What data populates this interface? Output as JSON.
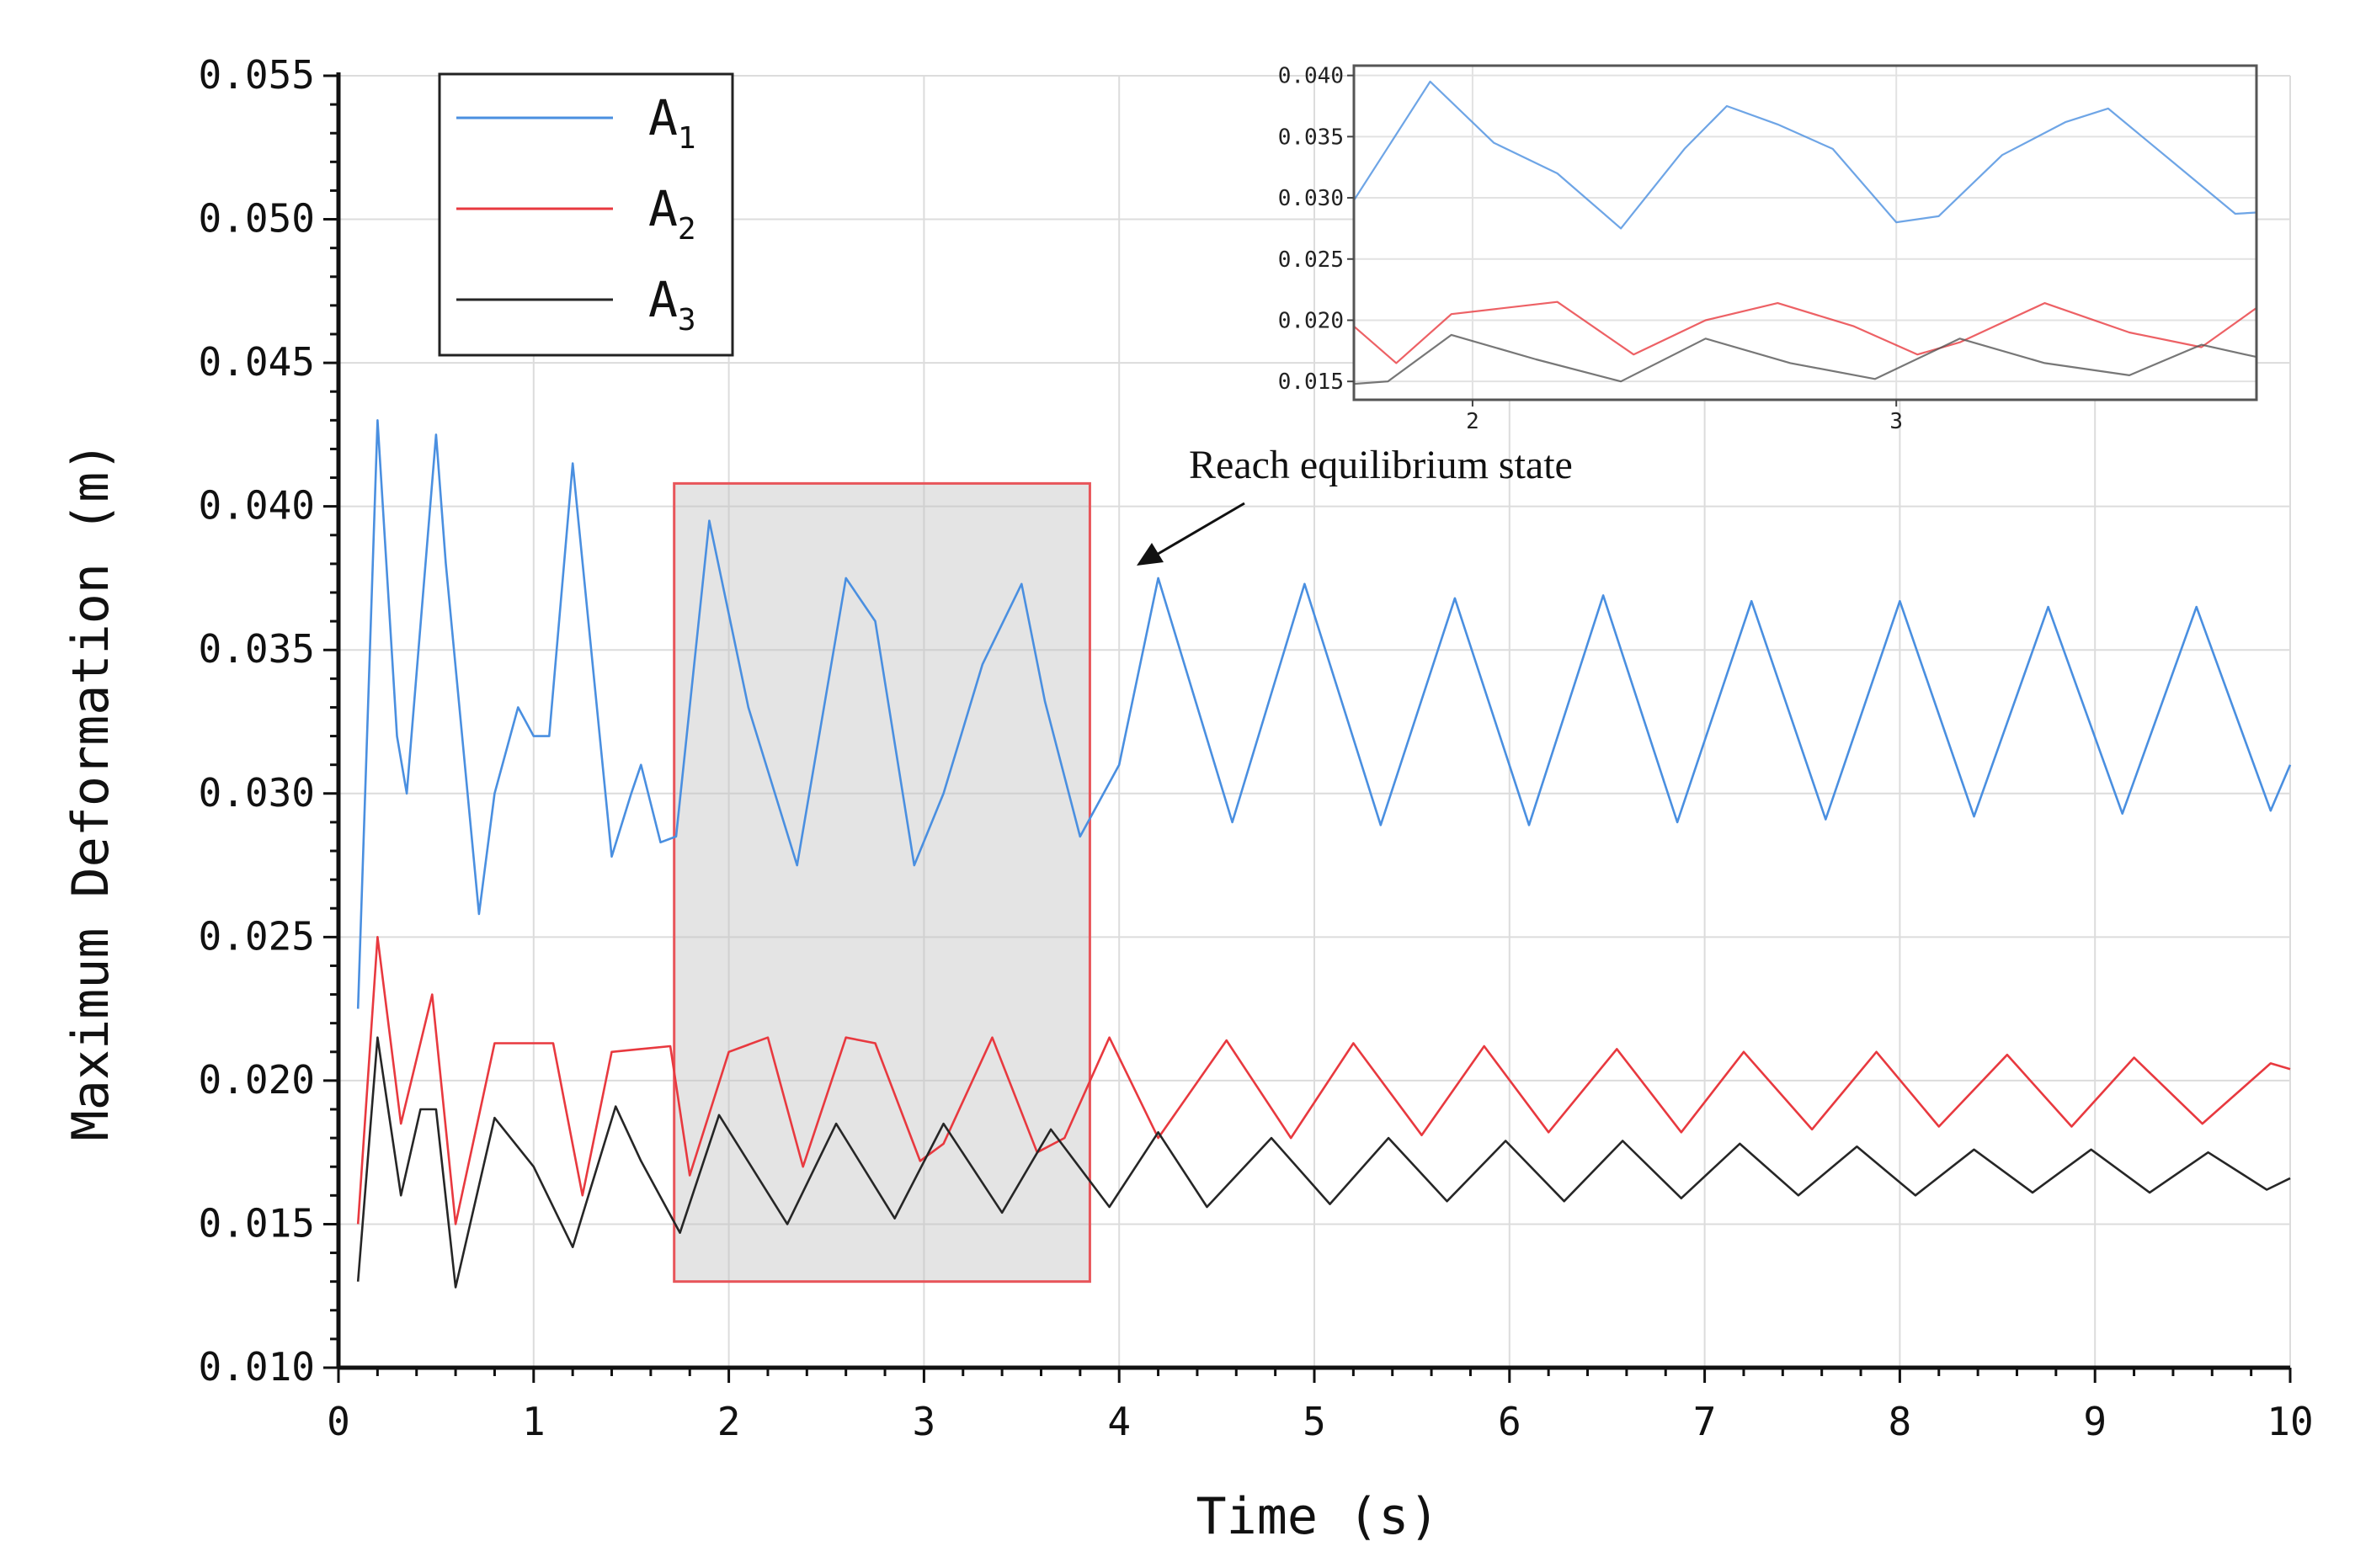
{
  "chart_data": [
    {
      "type": "line",
      "xlabel": "Time (s)",
      "ylabel": "Maximum Deformation (m)",
      "xlim": [
        0,
        10
      ],
      "ylim": [
        0.01,
        0.055
      ],
      "xticks": [
        "0",
        "1",
        "2",
        "3",
        "4",
        "5",
        "6",
        "7",
        "8",
        "9",
        "10"
      ],
      "yticks": [
        "0.010",
        "0.015",
        "0.020",
        "0.025",
        "0.030",
        "0.035",
        "0.040",
        "0.045",
        "0.050",
        "0.055"
      ],
      "grid": true,
      "legend_position": "top-left",
      "series": [
        {
          "name": "A1",
          "label_main": "A",
          "label_sub": "1",
          "color": "#4a8fe0",
          "x": [
            0.1,
            0.2,
            0.3,
            0.35,
            0.5,
            0.55,
            0.72,
            0.8,
            0.92,
            1.0,
            1.08,
            1.2,
            1.4,
            1.5,
            1.55,
            1.65,
            1.73,
            1.9,
            2.1,
            2.35,
            2.6,
            2.75,
            2.95,
            3.1,
            3.3,
            3.5,
            3.62,
            3.8,
            4.0,
            4.2,
            4.58,
            4.95,
            5.34,
            5.72,
            6.1,
            6.48,
            6.86,
            7.24,
            7.62,
            8.0,
            8.38,
            8.76,
            9.14,
            9.52,
            9.9,
            10.0
          ],
          "y": [
            0.0225,
            0.043,
            0.032,
            0.03,
            0.0425,
            0.038,
            0.0258,
            0.03,
            0.033,
            0.032,
            0.032,
            0.0415,
            0.0278,
            0.03,
            0.031,
            0.0283,
            0.0285,
            0.0395,
            0.033,
            0.0275,
            0.0375,
            0.036,
            0.0275,
            0.03,
            0.0345,
            0.0373,
            0.0332,
            0.0285,
            0.031,
            0.0375,
            0.029,
            0.0373,
            0.0289,
            0.0368,
            0.0289,
            0.0369,
            0.029,
            0.0367,
            0.0291,
            0.0367,
            0.0292,
            0.0365,
            0.0293,
            0.0365,
            0.0294,
            0.031
          ]
        },
        {
          "name": "A2",
          "label_main": "A",
          "label_sub": "2",
          "color": "#e8393f",
          "x": [
            0.1,
            0.2,
            0.32,
            0.48,
            0.6,
            0.8,
            1.1,
            1.25,
            1.4,
            1.7,
            1.8,
            2.0,
            2.2,
            2.38,
            2.6,
            2.75,
            2.98,
            3.1,
            3.35,
            3.58,
            3.72,
            3.95,
            4.2,
            4.55,
            4.88,
            5.2,
            5.55,
            5.87,
            6.2,
            6.55,
            6.88,
            7.2,
            7.55,
            7.88,
            8.2,
            8.55,
            8.88,
            9.2,
            9.55,
            9.9,
            10.0
          ],
          "y": [
            0.015,
            0.025,
            0.0185,
            0.023,
            0.015,
            0.0213,
            0.0213,
            0.016,
            0.021,
            0.0212,
            0.0167,
            0.021,
            0.0215,
            0.017,
            0.0215,
            0.0213,
            0.0172,
            0.0178,
            0.0215,
            0.0175,
            0.018,
            0.0215,
            0.018,
            0.0214,
            0.018,
            0.0213,
            0.0181,
            0.0212,
            0.0182,
            0.0211,
            0.0182,
            0.021,
            0.0183,
            0.021,
            0.0184,
            0.0209,
            0.0184,
            0.0208,
            0.0185,
            0.0206,
            0.0204
          ]
        },
        {
          "name": "A3",
          "label_main": "A",
          "label_sub": "3",
          "color": "#262626",
          "x": [
            0.1,
            0.2,
            0.32,
            0.42,
            0.5,
            0.6,
            0.8,
            1.0,
            1.2,
            1.42,
            1.55,
            1.75,
            1.95,
            2.3,
            2.55,
            2.85,
            3.1,
            3.4,
            3.65,
            3.95,
            4.2,
            4.45,
            4.78,
            5.08,
            5.38,
            5.68,
            5.98,
            6.28,
            6.58,
            6.88,
            7.18,
            7.48,
            7.78,
            8.08,
            8.38,
            8.68,
            8.98,
            9.28,
            9.58,
            9.88,
            10.0
          ],
          "y": [
            0.013,
            0.0215,
            0.016,
            0.019,
            0.019,
            0.0128,
            0.0187,
            0.017,
            0.0142,
            0.0191,
            0.0172,
            0.0147,
            0.0188,
            0.015,
            0.0185,
            0.0152,
            0.0185,
            0.0154,
            0.0183,
            0.0156,
            0.0182,
            0.0156,
            0.018,
            0.0157,
            0.018,
            0.0158,
            0.0179,
            0.0158,
            0.0179,
            0.0159,
            0.0178,
            0.016,
            0.0177,
            0.016,
            0.0176,
            0.0161,
            0.0176,
            0.0161,
            0.0175,
            0.0162,
            0.0166
          ]
        }
      ],
      "annotations": [
        {
          "text": "Reach equilibrium state",
          "x_start": 1.72,
          "x_end": 3.85,
          "y_start": 0.013,
          "y_end": 0.0408
        }
      ]
    },
    {
      "type": "line",
      "name": "inset",
      "xlim": [
        1.72,
        3.85
      ],
      "ylim": [
        0.0135,
        0.0408
      ],
      "xticks": [
        "2",
        "3"
      ],
      "yticks": [
        "0.015",
        "0.020",
        "0.025",
        "0.030",
        "0.035",
        "0.040"
      ],
      "grid": true,
      "series": [
        {
          "name": "A1",
          "color": "#4a8fe0",
          "x": [
            1.72,
            1.9,
            2.05,
            2.2,
            2.35,
            2.5,
            2.6,
            2.72,
            2.85,
            3.0,
            3.1,
            3.25,
            3.4,
            3.5,
            3.65,
            3.8,
            3.85
          ],
          "y": [
            0.0298,
            0.0395,
            0.0345,
            0.032,
            0.0275,
            0.034,
            0.0375,
            0.036,
            0.034,
            0.028,
            0.0285,
            0.0335,
            0.0362,
            0.0373,
            0.033,
            0.0287,
            0.0288
          ]
        },
        {
          "name": "A2",
          "color": "#e8393f",
          "x": [
            1.72,
            1.82,
            1.95,
            2.2,
            2.38,
            2.55,
            2.72,
            2.9,
            3.05,
            3.15,
            3.35,
            3.55,
            3.72,
            3.85
          ],
          "y": [
            0.0195,
            0.0165,
            0.0205,
            0.0215,
            0.0172,
            0.02,
            0.0214,
            0.0195,
            0.0172,
            0.0182,
            0.0214,
            0.019,
            0.0178,
            0.021
          ]
        },
        {
          "name": "A3",
          "color": "#555555",
          "x": [
            1.72,
            1.8,
            1.95,
            2.15,
            2.35,
            2.55,
            2.75,
            2.95,
            3.15,
            3.35,
            3.55,
            3.72,
            3.85
          ],
          "y": [
            0.0148,
            0.015,
            0.0188,
            0.0168,
            0.015,
            0.0185,
            0.0165,
            0.0152,
            0.0185,
            0.0165,
            0.0155,
            0.018,
            0.017
          ]
        }
      ]
    }
  ]
}
